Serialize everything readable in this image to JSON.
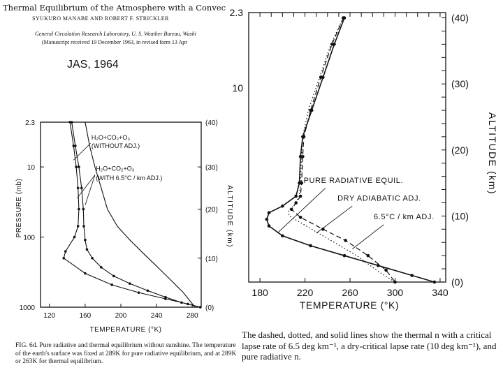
{
  "header": {
    "title": "Thermal Equilibrium of the Atmosphere with a Convec",
    "authors": "SYUKURO MANABE AND ROBERT F. STRICKLER",
    "affiliation": "General Circulation Research Laboratory, U. S. Weather Bureau, Washi",
    "manuscript": "(Manuscript received 19 December 1963, in revised form 13 Apr",
    "journal_tag": "JAS, 1964"
  },
  "captions": {
    "left": "FIG. 6d. Pure radiative and thermal equilibrium without sunshine. The temperature of the earth's surface was fixed at 289K for pure radiative equilibrium, and at 289K or 263K for thermal equilibrium.",
    "right": "The dashed, dotted, and solid lines show the thermal n with a critical lapse rate of 6.5 deg km⁻¹, a dry-critical lapse rate (10 deg km⁻¹), and pure radiative n."
  },
  "chart_data": [
    {
      "type": "line",
      "xlabel": "TEMPERATURE (°K)",
      "ylabel": "PRESSURE (mb)",
      "y2label": "ALTITUDE (km)",
      "xlim": [
        110,
        290
      ],
      "x_ticks": [
        "120",
        "160",
        "200",
        "240",
        "280"
      ],
      "x_tick_values": [
        120,
        160,
        200,
        240,
        280
      ],
      "y_scale": "log",
      "y_ticks": [
        "2.3",
        "10",
        "100",
        "1000"
      ],
      "y_tick_values": [
        2.3,
        10,
        100,
        1000
      ],
      "y2_ticks": [
        "(40)",
        "(30)",
        "(20)",
        "(10)",
        "(0)"
      ],
      "y2_tick_values": [
        2.3,
        10,
        40,
        200,
        1000
      ],
      "annotations": [
        {
          "text": "H₂O+CO₂+O₃",
          "x": 167,
          "y": 4.1
        },
        {
          "text": "(WITHOUT ADJ.)",
          "x": 167,
          "y": 5.4
        },
        {
          "text": "H₂O+CO₂+O₃",
          "x": 172,
          "y": 11.3
        },
        {
          "text": "(WITH 6.5°C / km ADJ.)",
          "x": 172,
          "y": 15.5
        }
      ],
      "series": [
        {
          "style": "solid",
          "marker": "dot",
          "x": [
            145,
            149,
            153,
            156,
            158,
            158.5,
            160,
            162,
            168,
            178,
            192,
            210,
            230,
            250,
            268,
            289
          ],
          "y": [
            2.3,
            5,
            10,
            20,
            40,
            70,
            110,
            150,
            200,
            270,
            360,
            460,
            580,
            720,
            860,
            1000
          ]
        },
        {
          "style": "solid",
          "marker": "dot",
          "x": [
            143,
            147,
            150,
            152,
            153,
            152,
            148,
            138,
            136,
            160,
            190,
            220,
            250,
            275,
            289
          ],
          "y": [
            2.3,
            5,
            10,
            20,
            40,
            70,
            100,
            160,
            200,
            330,
            480,
            620,
            760,
            900,
            1000
          ]
        },
        {
          "style": "solid",
          "marker": "none",
          "x": [
            160,
            165,
            171,
            178,
            185,
            196,
            210,
            225,
            240,
            255,
            270,
            283
          ],
          "y": [
            2.3,
            5,
            10,
            20,
            40,
            70,
            110,
            170,
            260,
            400,
            620,
            1000
          ]
        }
      ]
    },
    {
      "type": "line",
      "xlabel": "TEMPERATURE (°K)",
      "ylabel": "",
      "y2label": "ALTITUDE (km)",
      "xlim": [
        170,
        345
      ],
      "x_ticks": [
        "180",
        "220",
        "260",
        "300",
        "340"
      ],
      "x_tick_values": [
        180,
        220,
        260,
        300,
        340
      ],
      "y_ticks": [
        "2.3",
        "10"
      ],
      "y_tick_values": [
        2.3,
        10
      ],
      "y2_ticks": [
        "(40)",
        "(30)",
        "(20)",
        "(10)",
        "(0)"
      ],
      "y2_tick_values": [
        40,
        30,
        20,
        10,
        0
      ],
      "annotations": [
        {
          "text": "PURE RADIATIVE EQUIL.",
          "x": 263,
          "y": 15
        },
        {
          "text": "DRY ADIABATIC ADJ.",
          "x": 286,
          "y": 12.3
        },
        {
          "text": "6.5°C / km ADJ.",
          "x": 308,
          "y": 9.5
        }
      ],
      "series": [
        {
          "name": "PURE RADIATIVE EQUIL.",
          "style": "solid",
          "marker": "dot",
          "x": [
            255,
            246,
            236,
            226,
            218,
            216,
            215,
            212,
            200,
            188,
            186,
            188,
            200,
            225,
            255,
            285,
            315,
            335
          ],
          "y": [
            40,
            36,
            31,
            26,
            22,
            19,
            15,
            13,
            11.5,
            10.5,
            9.5,
            8.5,
            7,
            5.5,
            4,
            2.5,
            1,
            0
          ]
        },
        {
          "name": "6.5°C / km ADJ.",
          "style": "dashed",
          "marker": "dot",
          "x": [
            254,
            244,
            234,
            225,
            219,
            218,
            217,
            216,
            212,
            208,
            216,
            236,
            256,
            276,
            292,
            300
          ],
          "y": [
            40,
            36,
            31,
            26,
            22,
            19,
            15,
            13,
            12,
            11,
            9.8,
            8,
            6.3,
            4,
            1.8,
            0
          ]
        },
        {
          "name": "DRY ADIABATIC ADJ.",
          "style": "dotted",
          "marker": "none",
          "x": [
            254,
            243,
            233,
            223,
            218,
            217,
            216,
            215,
            210,
            205,
            206,
            226,
            246,
            266,
            286,
            300
          ],
          "y": [
            40,
            36,
            31,
            26,
            22,
            19,
            15,
            13,
            11.5,
            10.8,
            10,
            8,
            6,
            4,
            1.5,
            0
          ]
        }
      ]
    }
  ]
}
